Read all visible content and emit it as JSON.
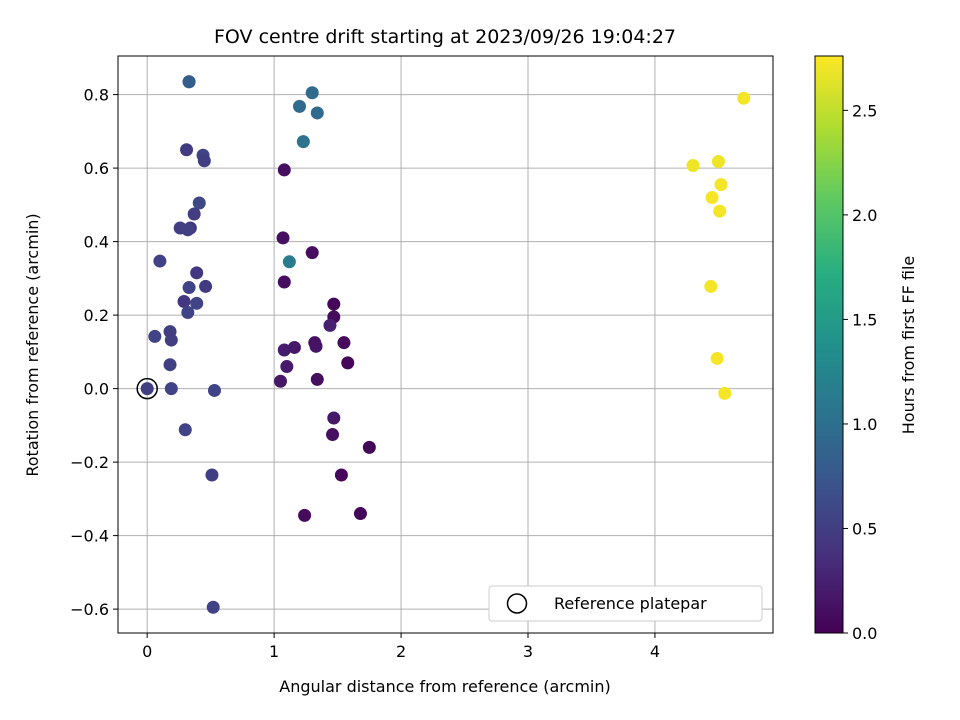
{
  "chart_data": {
    "type": "scatter",
    "title": "FOV centre drift starting at 2023/09/26 19:04:27",
    "xlabel": "Angular distance from reference (arcmin)",
    "ylabel": "Rotation from reference (arcmin)",
    "xlim": [
      -0.23,
      4.93
    ],
    "ylim": [
      -0.665,
      0.905
    ],
    "xticks": [
      0,
      1,
      2,
      3,
      4
    ],
    "yticks": [
      -0.6,
      -0.4,
      -0.2,
      0.0,
      0.2,
      0.4,
      0.6,
      0.8
    ],
    "xtick_labels": [
      "0",
      "1",
      "2",
      "3",
      "4"
    ],
    "ytick_labels": [
      "−0.6",
      "−0.4",
      "−0.2",
      "0.0",
      "0.2",
      "0.4",
      "0.6",
      "0.8"
    ],
    "grid": true,
    "colorbar": {
      "label": "Hours from first FF file",
      "colormap": "viridis",
      "range": [
        0.0,
        2.76
      ],
      "ticks": [
        0.0,
        0.5,
        1.0,
        1.5,
        2.0,
        2.5
      ],
      "tick_labels": [
        "0.0",
        "0.5",
        "1.0",
        "1.5",
        "2.0",
        "2.5"
      ]
    },
    "legend": {
      "position": "lower-right",
      "entries": [
        {
          "label": "Reference platepar",
          "marker": "hollow-circle"
        }
      ]
    },
    "reference_point": {
      "x": 0.0,
      "y": 0.0
    },
    "series": [
      {
        "points": [
          {
            "x": 1.08,
            "y": 0.595,
            "c": 0.1
          },
          {
            "x": 1.07,
            "y": 0.41,
            "c": 0.12
          },
          {
            "x": 1.3,
            "y": 0.37,
            "c": 0.1
          },
          {
            "x": 1.08,
            "y": 0.29,
            "c": 0.1
          },
          {
            "x": 1.47,
            "y": 0.23,
            "c": 0.05
          },
          {
            "x": 1.47,
            "y": 0.195,
            "c": 0.08
          },
          {
            "x": 1.44,
            "y": 0.172,
            "c": 0.25
          },
          {
            "x": 1.16,
            "y": 0.112,
            "c": 0.18
          },
          {
            "x": 1.08,
            "y": 0.105,
            "c": 0.22
          },
          {
            "x": 1.32,
            "y": 0.125,
            "c": 0.12
          },
          {
            "x": 1.33,
            "y": 0.115,
            "c": 0.15
          },
          {
            "x": 1.55,
            "y": 0.125,
            "c": 0.07
          },
          {
            "x": 1.58,
            "y": 0.07,
            "c": 0.05
          },
          {
            "x": 1.1,
            "y": 0.06,
            "c": 0.2
          },
          {
            "x": 1.34,
            "y": 0.025,
            "c": 0.1
          },
          {
            "x": 1.05,
            "y": 0.02,
            "c": 0.18
          },
          {
            "x": 1.47,
            "y": -0.08,
            "c": 0.18
          },
          {
            "x": 1.46,
            "y": -0.125,
            "c": 0.12
          },
          {
            "x": 1.75,
            "y": -0.16,
            "c": 0.05
          },
          {
            "x": 1.53,
            "y": -0.235,
            "c": 0.05
          },
          {
            "x": 1.24,
            "y": -0.345,
            "c": 0.08
          },
          {
            "x": 1.68,
            "y": -0.34,
            "c": 0.05
          },
          {
            "x": 0.33,
            "y": 0.835,
            "c": 0.8
          },
          {
            "x": 0.31,
            "y": 0.65,
            "c": 0.48
          },
          {
            "x": 0.44,
            "y": 0.635,
            "c": 0.55
          },
          {
            "x": 0.45,
            "y": 0.62,
            "c": 0.5
          },
          {
            "x": 0.41,
            "y": 0.505,
            "c": 0.6
          },
          {
            "x": 0.37,
            "y": 0.475,
            "c": 0.5
          },
          {
            "x": 0.26,
            "y": 0.437,
            "c": 0.5
          },
          {
            "x": 0.34,
            "y": 0.437,
            "c": 0.45
          },
          {
            "x": 0.32,
            "y": 0.432,
            "c": 0.52
          },
          {
            "x": 0.1,
            "y": 0.347,
            "c": 0.55
          },
          {
            "x": 0.39,
            "y": 0.315,
            "c": 0.45
          },
          {
            "x": 0.46,
            "y": 0.278,
            "c": 0.48
          },
          {
            "x": 0.33,
            "y": 0.275,
            "c": 0.55
          },
          {
            "x": 0.29,
            "y": 0.237,
            "c": 0.45
          },
          {
            "x": 0.39,
            "y": 0.232,
            "c": 0.55
          },
          {
            "x": 0.32,
            "y": 0.207,
            "c": 0.55
          },
          {
            "x": 0.18,
            "y": 0.155,
            "c": 0.5
          },
          {
            "x": 0.06,
            "y": 0.142,
            "c": 0.55
          },
          {
            "x": 0.19,
            "y": 0.132,
            "c": 0.5
          },
          {
            "x": 0.18,
            "y": 0.065,
            "c": 0.52
          },
          {
            "x": 0.19,
            "y": 0.0,
            "c": 0.55
          },
          {
            "x": 0.53,
            "y": -0.005,
            "c": 0.55
          },
          {
            "x": 0.3,
            "y": -0.112,
            "c": 0.55
          },
          {
            "x": 0.51,
            "y": -0.235,
            "c": 0.5
          },
          {
            "x": 0.52,
            "y": -0.595,
            "c": 0.55
          },
          {
            "x": 0.33,
            "y": 0.835,
            "c": 0.82
          },
          {
            "x": 1.3,
            "y": 0.805,
            "c": 0.95
          },
          {
            "x": 1.2,
            "y": 0.768,
            "c": 0.95
          },
          {
            "x": 1.34,
            "y": 0.75,
            "c": 0.95
          },
          {
            "x": 1.23,
            "y": 0.672,
            "c": 1.05
          },
          {
            "x": 1.12,
            "y": 0.345,
            "c": 1.15
          },
          {
            "x": 4.7,
            "y": 0.79,
            "c": 2.72
          },
          {
            "x": 4.3,
            "y": 0.607,
            "c": 2.7
          },
          {
            "x": 4.5,
            "y": 0.618,
            "c": 2.7
          },
          {
            "x": 4.52,
            "y": 0.555,
            "c": 2.72
          },
          {
            "x": 4.45,
            "y": 0.52,
            "c": 2.72
          },
          {
            "x": 4.51,
            "y": 0.483,
            "c": 2.72
          },
          {
            "x": 4.44,
            "y": 0.278,
            "c": 2.72
          },
          {
            "x": 4.49,
            "y": 0.082,
            "c": 2.72
          },
          {
            "x": 4.55,
            "y": -0.013,
            "c": 2.72
          }
        ]
      }
    ]
  }
}
